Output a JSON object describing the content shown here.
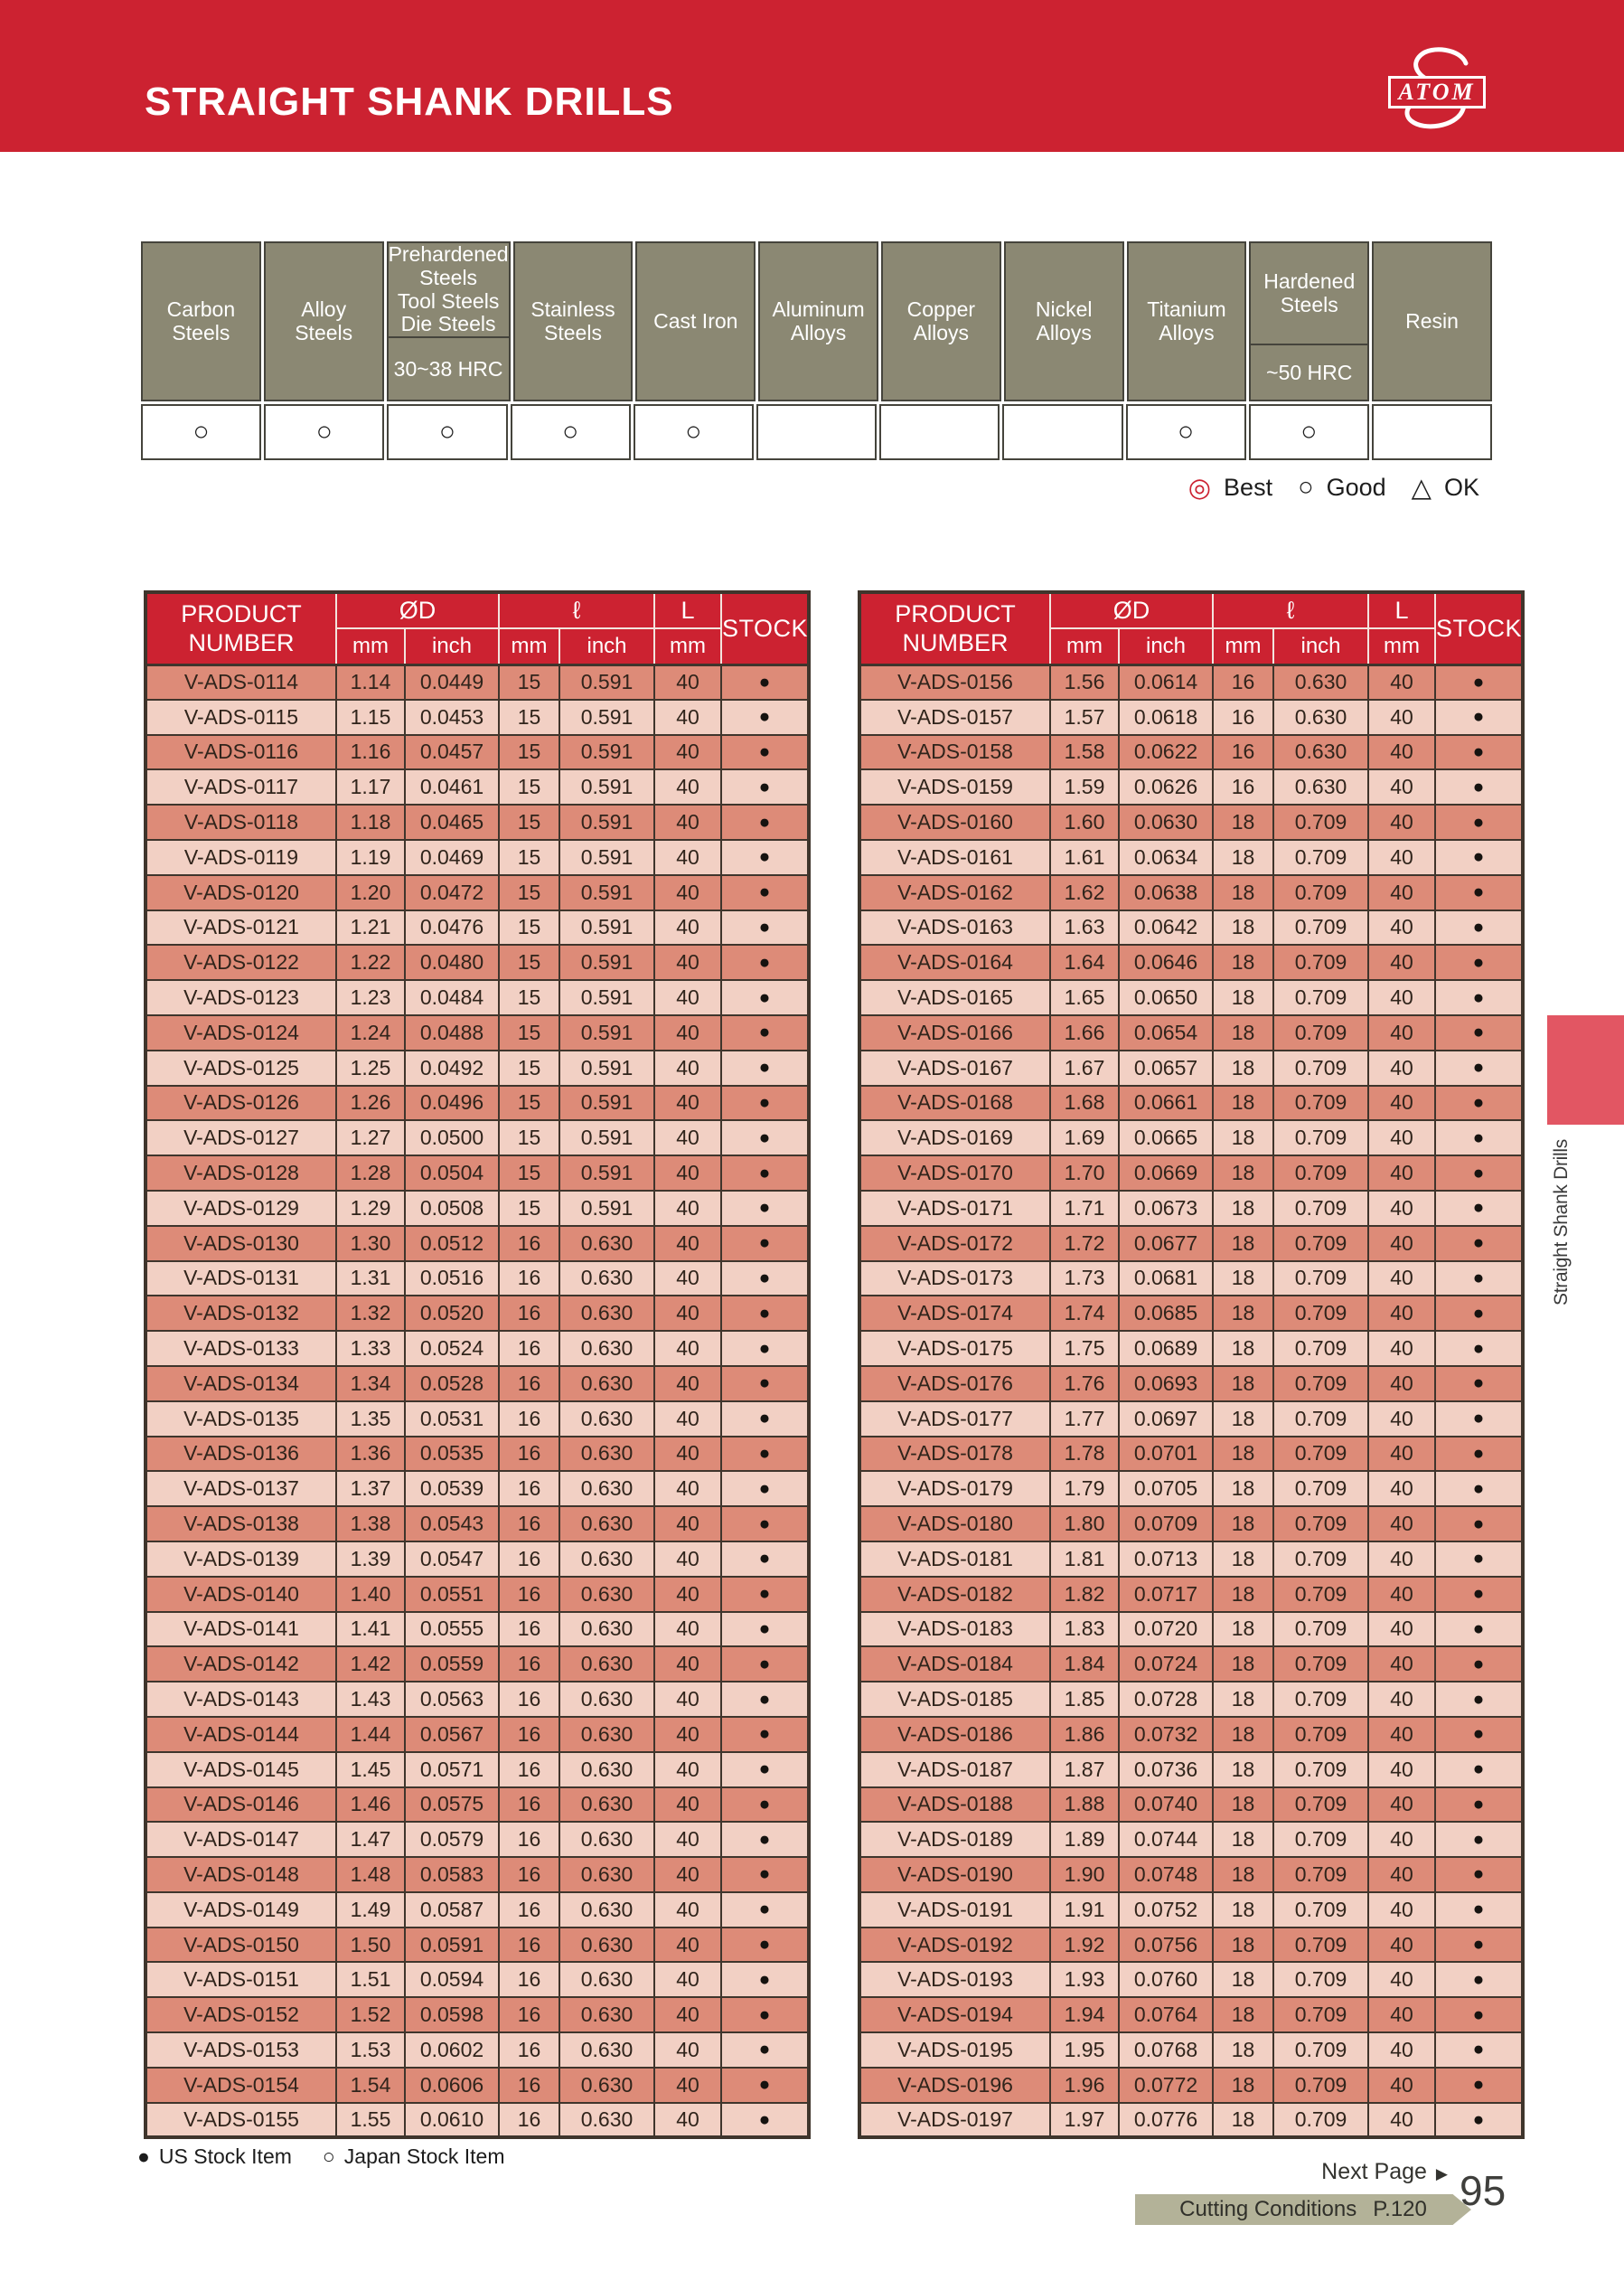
{
  "header": {
    "title": "STRAIGHT SHANK DRILLS",
    "logo_text": "ATOM"
  },
  "materials": {
    "columns": [
      {
        "label": "Carbon\nSteels",
        "sub": "",
        "rating": "○"
      },
      {
        "label": "Alloy\nSteels",
        "sub": "",
        "rating": "○"
      },
      {
        "label": "Prehardened\nSteels\nTool Steels\nDie Steels",
        "sub": "30~38 HRC",
        "rating": "○"
      },
      {
        "label": "Stainless\nSteels",
        "sub": "",
        "rating": "○"
      },
      {
        "label": "Cast Iron",
        "sub": "",
        "rating": "○"
      },
      {
        "label": "Aluminum\nAlloys",
        "sub": "",
        "rating": ""
      },
      {
        "label": "Copper\nAlloys",
        "sub": "",
        "rating": ""
      },
      {
        "label": "Nickel\nAlloys",
        "sub": "",
        "rating": ""
      },
      {
        "label": "Titanium\nAlloys",
        "sub": "",
        "rating": "○"
      },
      {
        "label": "Hardened\nSteels",
        "sub": "~50 HRC",
        "rating": "○"
      },
      {
        "label": "Resin",
        "sub": "",
        "rating": ""
      }
    ],
    "legend": {
      "best_symbol": "◎",
      "best": "Best",
      "good_symbol": "○",
      "good": "Good",
      "ok_symbol": "△",
      "ok": "OK"
    }
  },
  "table_headers": {
    "product": "PRODUCT\nNUMBER",
    "od": "ØD",
    "flute": "ℓ",
    "oal": "L",
    "stock": "STOCK",
    "mm": "mm",
    "inch": "inch"
  },
  "left_rows": [
    [
      "V-ADS-0114",
      "1.14",
      "0.0449",
      "15",
      "0.591",
      "40",
      "●"
    ],
    [
      "V-ADS-0115",
      "1.15",
      "0.0453",
      "15",
      "0.591",
      "40",
      "●"
    ],
    [
      "V-ADS-0116",
      "1.16",
      "0.0457",
      "15",
      "0.591",
      "40",
      "●"
    ],
    [
      "V-ADS-0117",
      "1.17",
      "0.0461",
      "15",
      "0.591",
      "40",
      "●"
    ],
    [
      "V-ADS-0118",
      "1.18",
      "0.0465",
      "15",
      "0.591",
      "40",
      "●"
    ],
    [
      "V-ADS-0119",
      "1.19",
      "0.0469",
      "15",
      "0.591",
      "40",
      "●"
    ],
    [
      "V-ADS-0120",
      "1.20",
      "0.0472",
      "15",
      "0.591",
      "40",
      "●"
    ],
    [
      "V-ADS-0121",
      "1.21",
      "0.0476",
      "15",
      "0.591",
      "40",
      "●"
    ],
    [
      "V-ADS-0122",
      "1.22",
      "0.0480",
      "15",
      "0.591",
      "40",
      "●"
    ],
    [
      "V-ADS-0123",
      "1.23",
      "0.0484",
      "15",
      "0.591",
      "40",
      "●"
    ],
    [
      "V-ADS-0124",
      "1.24",
      "0.0488",
      "15",
      "0.591",
      "40",
      "●"
    ],
    [
      "V-ADS-0125",
      "1.25",
      "0.0492",
      "15",
      "0.591",
      "40",
      "●"
    ],
    [
      "V-ADS-0126",
      "1.26",
      "0.0496",
      "15",
      "0.591",
      "40",
      "●"
    ],
    [
      "V-ADS-0127",
      "1.27",
      "0.0500",
      "15",
      "0.591",
      "40",
      "●"
    ],
    [
      "V-ADS-0128",
      "1.28",
      "0.0504",
      "15",
      "0.591",
      "40",
      "●"
    ],
    [
      "V-ADS-0129",
      "1.29",
      "0.0508",
      "15",
      "0.591",
      "40",
      "●"
    ],
    [
      "V-ADS-0130",
      "1.30",
      "0.0512",
      "16",
      "0.630",
      "40",
      "●"
    ],
    [
      "V-ADS-0131",
      "1.31",
      "0.0516",
      "16",
      "0.630",
      "40",
      "●"
    ],
    [
      "V-ADS-0132",
      "1.32",
      "0.0520",
      "16",
      "0.630",
      "40",
      "●"
    ],
    [
      "V-ADS-0133",
      "1.33",
      "0.0524",
      "16",
      "0.630",
      "40",
      "●"
    ],
    [
      "V-ADS-0134",
      "1.34",
      "0.0528",
      "16",
      "0.630",
      "40",
      "●"
    ],
    [
      "V-ADS-0135",
      "1.35",
      "0.0531",
      "16",
      "0.630",
      "40",
      "●"
    ],
    [
      "V-ADS-0136",
      "1.36",
      "0.0535",
      "16",
      "0.630",
      "40",
      "●"
    ],
    [
      "V-ADS-0137",
      "1.37",
      "0.0539",
      "16",
      "0.630",
      "40",
      "●"
    ],
    [
      "V-ADS-0138",
      "1.38",
      "0.0543",
      "16",
      "0.630",
      "40",
      "●"
    ],
    [
      "V-ADS-0139",
      "1.39",
      "0.0547",
      "16",
      "0.630",
      "40",
      "●"
    ],
    [
      "V-ADS-0140",
      "1.40",
      "0.0551",
      "16",
      "0.630",
      "40",
      "●"
    ],
    [
      "V-ADS-0141",
      "1.41",
      "0.0555",
      "16",
      "0.630",
      "40",
      "●"
    ],
    [
      "V-ADS-0142",
      "1.42",
      "0.0559",
      "16",
      "0.630",
      "40",
      "●"
    ],
    [
      "V-ADS-0143",
      "1.43",
      "0.0563",
      "16",
      "0.630",
      "40",
      "●"
    ],
    [
      "V-ADS-0144",
      "1.44",
      "0.0567",
      "16",
      "0.630",
      "40",
      "●"
    ],
    [
      "V-ADS-0145",
      "1.45",
      "0.0571",
      "16",
      "0.630",
      "40",
      "●"
    ],
    [
      "V-ADS-0146",
      "1.46",
      "0.0575",
      "16",
      "0.630",
      "40",
      "●"
    ],
    [
      "V-ADS-0147",
      "1.47",
      "0.0579",
      "16",
      "0.630",
      "40",
      "●"
    ],
    [
      "V-ADS-0148",
      "1.48",
      "0.0583",
      "16",
      "0.630",
      "40",
      "●"
    ],
    [
      "V-ADS-0149",
      "1.49",
      "0.0587",
      "16",
      "0.630",
      "40",
      "●"
    ],
    [
      "V-ADS-0150",
      "1.50",
      "0.0591",
      "16",
      "0.630",
      "40",
      "●"
    ],
    [
      "V-ADS-0151",
      "1.51",
      "0.0594",
      "16",
      "0.630",
      "40",
      "●"
    ],
    [
      "V-ADS-0152",
      "1.52",
      "0.0598",
      "16",
      "0.630",
      "40",
      "●"
    ],
    [
      "V-ADS-0153",
      "1.53",
      "0.0602",
      "16",
      "0.630",
      "40",
      "●"
    ],
    [
      "V-ADS-0154",
      "1.54",
      "0.0606",
      "16",
      "0.630",
      "40",
      "●"
    ],
    [
      "V-ADS-0155",
      "1.55",
      "0.0610",
      "16",
      "0.630",
      "40",
      "●"
    ]
  ],
  "right_rows": [
    [
      "V-ADS-0156",
      "1.56",
      "0.0614",
      "16",
      "0.630",
      "40",
      "●"
    ],
    [
      "V-ADS-0157",
      "1.57",
      "0.0618",
      "16",
      "0.630",
      "40",
      "●"
    ],
    [
      "V-ADS-0158",
      "1.58",
      "0.0622",
      "16",
      "0.630",
      "40",
      "●"
    ],
    [
      "V-ADS-0159",
      "1.59",
      "0.0626",
      "16",
      "0.630",
      "40",
      "●"
    ],
    [
      "V-ADS-0160",
      "1.60",
      "0.0630",
      "18",
      "0.709",
      "40",
      "●"
    ],
    [
      "V-ADS-0161",
      "1.61",
      "0.0634",
      "18",
      "0.709",
      "40",
      "●"
    ],
    [
      "V-ADS-0162",
      "1.62",
      "0.0638",
      "18",
      "0.709",
      "40",
      "●"
    ],
    [
      "V-ADS-0163",
      "1.63",
      "0.0642",
      "18",
      "0.709",
      "40",
      "●"
    ],
    [
      "V-ADS-0164",
      "1.64",
      "0.0646",
      "18",
      "0.709",
      "40",
      "●"
    ],
    [
      "V-ADS-0165",
      "1.65",
      "0.0650",
      "18",
      "0.709",
      "40",
      "●"
    ],
    [
      "V-ADS-0166",
      "1.66",
      "0.0654",
      "18",
      "0.709",
      "40",
      "●"
    ],
    [
      "V-ADS-0167",
      "1.67",
      "0.0657",
      "18",
      "0.709",
      "40",
      "●"
    ],
    [
      "V-ADS-0168",
      "1.68",
      "0.0661",
      "18",
      "0.709",
      "40",
      "●"
    ],
    [
      "V-ADS-0169",
      "1.69",
      "0.0665",
      "18",
      "0.709",
      "40",
      "●"
    ],
    [
      "V-ADS-0170",
      "1.70",
      "0.0669",
      "18",
      "0.709",
      "40",
      "●"
    ],
    [
      "V-ADS-0171",
      "1.71",
      "0.0673",
      "18",
      "0.709",
      "40",
      "●"
    ],
    [
      "V-ADS-0172",
      "1.72",
      "0.0677",
      "18",
      "0.709",
      "40",
      "●"
    ],
    [
      "V-ADS-0173",
      "1.73",
      "0.0681",
      "18",
      "0.709",
      "40",
      "●"
    ],
    [
      "V-ADS-0174",
      "1.74",
      "0.0685",
      "18",
      "0.709",
      "40",
      "●"
    ],
    [
      "V-ADS-0175",
      "1.75",
      "0.0689",
      "18",
      "0.709",
      "40",
      "●"
    ],
    [
      "V-ADS-0176",
      "1.76",
      "0.0693",
      "18",
      "0.709",
      "40",
      "●"
    ],
    [
      "V-ADS-0177",
      "1.77",
      "0.0697",
      "18",
      "0.709",
      "40",
      "●"
    ],
    [
      "V-ADS-0178",
      "1.78",
      "0.0701",
      "18",
      "0.709",
      "40",
      "●"
    ],
    [
      "V-ADS-0179",
      "1.79",
      "0.0705",
      "18",
      "0.709",
      "40",
      "●"
    ],
    [
      "V-ADS-0180",
      "1.80",
      "0.0709",
      "18",
      "0.709",
      "40",
      "●"
    ],
    [
      "V-ADS-0181",
      "1.81",
      "0.0713",
      "18",
      "0.709",
      "40",
      "●"
    ],
    [
      "V-ADS-0182",
      "1.82",
      "0.0717",
      "18",
      "0.709",
      "40",
      "●"
    ],
    [
      "V-ADS-0183",
      "1.83",
      "0.0720",
      "18",
      "0.709",
      "40",
      "●"
    ],
    [
      "V-ADS-0184",
      "1.84",
      "0.0724",
      "18",
      "0.709",
      "40",
      "●"
    ],
    [
      "V-ADS-0185",
      "1.85",
      "0.0728",
      "18",
      "0.709",
      "40",
      "●"
    ],
    [
      "V-ADS-0186",
      "1.86",
      "0.0732",
      "18",
      "0.709",
      "40",
      "●"
    ],
    [
      "V-ADS-0187",
      "1.87",
      "0.0736",
      "18",
      "0.709",
      "40",
      "●"
    ],
    [
      "V-ADS-0188",
      "1.88",
      "0.0740",
      "18",
      "0.709",
      "40",
      "●"
    ],
    [
      "V-ADS-0189",
      "1.89",
      "0.0744",
      "18",
      "0.709",
      "40",
      "●"
    ],
    [
      "V-ADS-0190",
      "1.90",
      "0.0748",
      "18",
      "0.709",
      "40",
      "●"
    ],
    [
      "V-ADS-0191",
      "1.91",
      "0.0752",
      "18",
      "0.709",
      "40",
      "●"
    ],
    [
      "V-ADS-0192",
      "1.92",
      "0.0756",
      "18",
      "0.709",
      "40",
      "●"
    ],
    [
      "V-ADS-0193",
      "1.93",
      "0.0760",
      "18",
      "0.709",
      "40",
      "●"
    ],
    [
      "V-ADS-0194",
      "1.94",
      "0.0764",
      "18",
      "0.709",
      "40",
      "●"
    ],
    [
      "V-ADS-0195",
      "1.95",
      "0.0768",
      "18",
      "0.709",
      "40",
      "●"
    ],
    [
      "V-ADS-0196",
      "1.96",
      "0.0772",
      "18",
      "0.709",
      "40",
      "●"
    ],
    [
      "V-ADS-0197",
      "1.97",
      "0.0776",
      "18",
      "0.709",
      "40",
      "●"
    ]
  ],
  "footer": {
    "us_symbol": "●",
    "us_label": "US Stock Item",
    "jp_symbol": "○",
    "jp_label": "Japan Stock Item",
    "next_page": "Next Page",
    "next_page_icon": "▶",
    "page_number": "95",
    "cutting_conditions": "Cutting Conditions",
    "cutting_page": "P.120"
  },
  "side_tab": {
    "label": "Straight Shank Drills"
  },
  "colors": {
    "red": "#cc2231",
    "row_dark": "#dd8b78",
    "row_light": "#f2d0c4",
    "olive_header": "#8b8873",
    "banner_olive": "#b3b298",
    "tab_red": "#e25663"
  }
}
